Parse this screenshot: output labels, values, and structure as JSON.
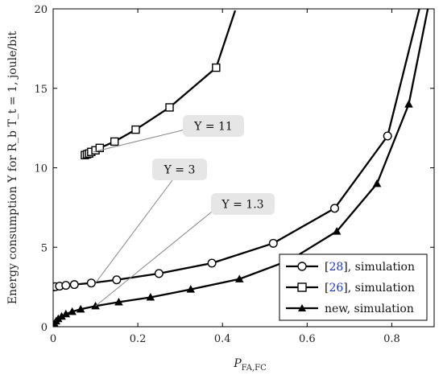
{
  "chart_data": {
    "type": "line",
    "xlabel_main": "P",
    "xlabel_sub": "FA,FC",
    "ylabel": "Energy consumption Υ for R_b T_t = 1, joule/bit",
    "xlim": [
      0,
      0.9
    ],
    "ylim": [
      0,
      20
    ],
    "xticks": [
      0,
      0.2,
      0.4,
      0.6,
      0.8
    ],
    "xtick_labels": [
      "0",
      "0.2",
      "0.4",
      "0.6",
      "0.8"
    ],
    "yticks": [
      0,
      5,
      10,
      15,
      20
    ],
    "ytick_labels": [
      "0",
      "5",
      "10",
      "15",
      "20"
    ],
    "grid": false,
    "legend_position": "bottom-right",
    "series": [
      {
        "name": "[28], simulation",
        "ref": "28",
        "suffix": ", simulation",
        "marker": "circle",
        "line_x": [
          0.0,
          0.005,
          0.015,
          0.03,
          0.05,
          0.09,
          0.15,
          0.25,
          0.375,
          0.52,
          0.665,
          0.79,
          0.865
        ],
        "line_y": [
          2.5,
          2.52,
          2.55,
          2.6,
          2.65,
          2.75,
          2.95,
          3.35,
          4.0,
          5.25,
          7.45,
          12.0,
          20.0
        ],
        "marker_x": [
          0.0,
          0.005,
          0.015,
          0.03,
          0.05,
          0.09,
          0.15,
          0.25,
          0.375,
          0.52,
          0.665,
          0.79
        ],
        "marker_y": [
          2.5,
          2.52,
          2.55,
          2.6,
          2.65,
          2.75,
          2.95,
          3.35,
          4.0,
          5.25,
          7.45,
          12.0
        ]
      },
      {
        "name": "[26], simulation",
        "ref": "26",
        "suffix": ", simulation",
        "marker": "square",
        "line_x": [
          0.075,
          0.08,
          0.085,
          0.09,
          0.1,
          0.11,
          0.145,
          0.195,
          0.275,
          0.385,
          0.43
        ],
        "line_y": [
          10.8,
          10.85,
          10.9,
          11.0,
          11.1,
          11.25,
          11.65,
          12.4,
          13.8,
          16.3,
          19.9
        ],
        "marker_x": [
          0.075,
          0.08,
          0.085,
          0.09,
          0.1,
          0.11,
          0.145,
          0.195,
          0.275,
          0.385
        ],
        "marker_y": [
          10.8,
          10.85,
          10.9,
          11.0,
          11.1,
          11.25,
          11.65,
          12.4,
          13.8,
          16.3
        ]
      },
      {
        "name": "new, simulation",
        "ref": "",
        "suffix": "new, simulation",
        "marker": "triangle",
        "line_x": [
          0.0,
          0.003,
          0.007,
          0.012,
          0.02,
          0.03,
          0.045,
          0.065,
          0.1,
          0.155,
          0.23,
          0.325,
          0.44,
          0.56,
          0.67,
          0.765,
          0.84,
          0.885
        ],
        "line_y": [
          0.0,
          0.2,
          0.35,
          0.5,
          0.65,
          0.8,
          0.95,
          1.1,
          1.3,
          1.55,
          1.85,
          2.35,
          3.0,
          4.2,
          6.0,
          9.0,
          14.0,
          20.0
        ],
        "marker_x": [
          0.003,
          0.007,
          0.012,
          0.02,
          0.03,
          0.045,
          0.065,
          0.1,
          0.155,
          0.23,
          0.325,
          0.44,
          0.67,
          0.765,
          0.84
        ],
        "marker_y": [
          0.2,
          0.35,
          0.5,
          0.65,
          0.8,
          0.95,
          1.1,
          1.3,
          1.55,
          1.85,
          2.35,
          3.0,
          6.0,
          9.0,
          14.0
        ]
      }
    ],
    "annotations": [
      {
        "text": "Υ = 11",
        "point": [
          0.095,
          11.0
        ]
      },
      {
        "text": "Υ = 3",
        "point": [
          0.1,
          2.75
        ]
      },
      {
        "text": "Υ = 1.3",
        "point": [
          0.1,
          1.3
        ]
      }
    ]
  },
  "colors": {
    "line": "#000000",
    "reference_link": "#1a35c9",
    "annotation_box": "#e6e6e6",
    "leader_line": "#888888"
  }
}
